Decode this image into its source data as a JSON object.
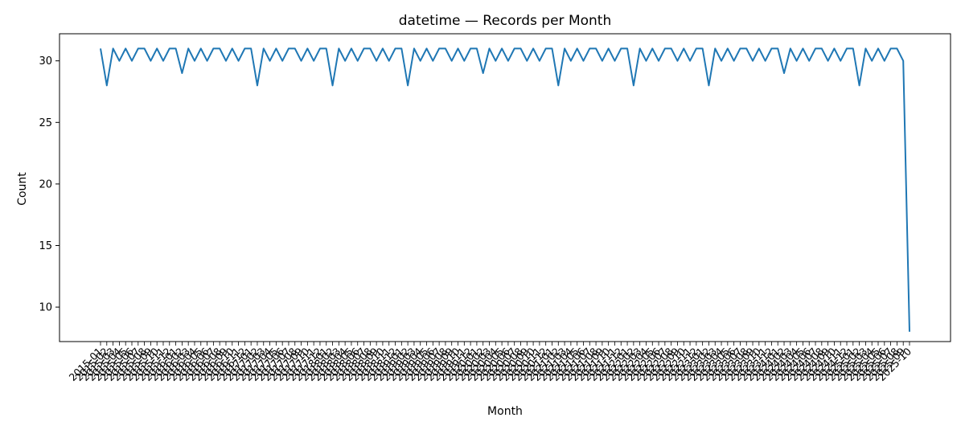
{
  "chart_data": {
    "type": "line",
    "title": "datetime — Records per Month",
    "xlabel": "Month",
    "ylabel": "Count",
    "ylim": [
      7.2,
      32.2
    ],
    "yticks": [
      10,
      15,
      20,
      25,
      30
    ],
    "grid": false,
    "legend": "none",
    "series": [
      {
        "color": "#1f77b4",
        "x": [
          "2015-01",
          "2015-02",
          "2015-03",
          "2015-04",
          "2015-05",
          "2015-06",
          "2015-07",
          "2015-08",
          "2015-09",
          "2015-10",
          "2015-11",
          "2015-12",
          "2016-01",
          "2016-02",
          "2016-03",
          "2016-04",
          "2016-05",
          "2016-06",
          "2016-07",
          "2016-08",
          "2016-09",
          "2016-10",
          "2016-11",
          "2016-12",
          "2017-01",
          "2017-02",
          "2017-03",
          "2017-04",
          "2017-05",
          "2017-06",
          "2017-07",
          "2017-08",
          "2017-09",
          "2017-10",
          "2017-11",
          "2017-12",
          "2018-01",
          "2018-02",
          "2018-03",
          "2018-04",
          "2018-05",
          "2018-06",
          "2018-07",
          "2018-08",
          "2018-09",
          "2018-10",
          "2018-11",
          "2018-12",
          "2019-01",
          "2019-02",
          "2019-03",
          "2019-04",
          "2019-05",
          "2019-06",
          "2019-07",
          "2019-08",
          "2019-09",
          "2019-10",
          "2019-11",
          "2019-12",
          "2020-01",
          "2020-02",
          "2020-03",
          "2020-04",
          "2020-05",
          "2020-06",
          "2020-07",
          "2020-08",
          "2020-09",
          "2020-10",
          "2020-11",
          "2020-12",
          "2021-01",
          "2021-02",
          "2021-03",
          "2021-04",
          "2021-05",
          "2021-06",
          "2021-07",
          "2021-08",
          "2021-09",
          "2021-10",
          "2021-11",
          "2021-12",
          "2022-01",
          "2022-02",
          "2022-03",
          "2022-04",
          "2022-05",
          "2022-06",
          "2022-07",
          "2022-08",
          "2022-09",
          "2022-10",
          "2022-11",
          "2022-12",
          "2023-01",
          "2023-02",
          "2023-03",
          "2023-04",
          "2023-05",
          "2023-06",
          "2023-07",
          "2023-08",
          "2023-09",
          "2023-10",
          "2023-11",
          "2023-12",
          "2024-01",
          "2024-02",
          "2024-03",
          "2024-04",
          "2024-05",
          "2024-06",
          "2024-07",
          "2024-08",
          "2024-09",
          "2024-10",
          "2024-11",
          "2024-12",
          "2025-01",
          "2025-02",
          "2025-03",
          "2025-04",
          "2025-05",
          "2025-06",
          "2025-07",
          "2025-08",
          "2025-09",
          "2025-10"
        ],
        "values": [
          31,
          28,
          31,
          30,
          31,
          30,
          31,
          31,
          30,
          31,
          30,
          31,
          31,
          29,
          31,
          30,
          31,
          30,
          31,
          31,
          30,
          31,
          30,
          31,
          31,
          28,
          31,
          30,
          31,
          30,
          31,
          31,
          30,
          31,
          30,
          31,
          31,
          28,
          31,
          30,
          31,
          30,
          31,
          31,
          30,
          31,
          30,
          31,
          31,
          28,
          31,
          30,
          31,
          30,
          31,
          31,
          30,
          31,
          30,
          31,
          31,
          29,
          31,
          30,
          31,
          30,
          31,
          31,
          30,
          31,
          30,
          31,
          31,
          28,
          31,
          30,
          31,
          30,
          31,
          31,
          30,
          31,
          30,
          31,
          31,
          28,
          31,
          30,
          31,
          30,
          31,
          31,
          30,
          31,
          30,
          31,
          31,
          28,
          31,
          30,
          31,
          30,
          31,
          31,
          30,
          31,
          30,
          31,
          31,
          29,
          31,
          30,
          31,
          30,
          31,
          31,
          30,
          31,
          30,
          31,
          31,
          28,
          31,
          30,
          31,
          30,
          31,
          31,
          30,
          8
        ]
      }
    ]
  }
}
